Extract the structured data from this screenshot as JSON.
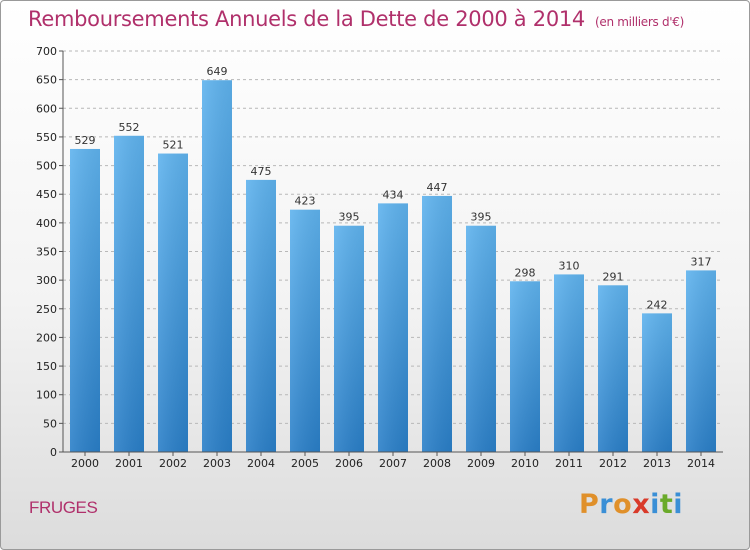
{
  "chart_data": {
    "type": "bar",
    "title": "Remboursements Annuels de la Dette de 2000 à 2014",
    "subtitle": "(en milliers d'€)",
    "categories": [
      "2000",
      "2001",
      "2002",
      "2003",
      "2004",
      "2005",
      "2006",
      "2007",
      "2008",
      "2009",
      "2010",
      "2011",
      "2012",
      "2013",
      "2014"
    ],
    "values": [
      529,
      552,
      521,
      649,
      475,
      423,
      395,
      434,
      447,
      395,
      298,
      310,
      291,
      242,
      317
    ],
    "ylim": [
      0,
      700
    ],
    "yticks": [
      0,
      50,
      100,
      150,
      200,
      250,
      300,
      350,
      400,
      450,
      500,
      550,
      600,
      650,
      700
    ],
    "grid": "horizontal dashed",
    "bar_color": "#3a8fd6"
  },
  "footer": {
    "city": "FRUGES",
    "brand": "Proxiti",
    "brand_colors": [
      "#e0902a",
      "#3a8fd6",
      "#e0902a",
      "#d93a2a",
      "#3a8fd6",
      "#6aaa2a",
      "#3a8fd6"
    ]
  }
}
